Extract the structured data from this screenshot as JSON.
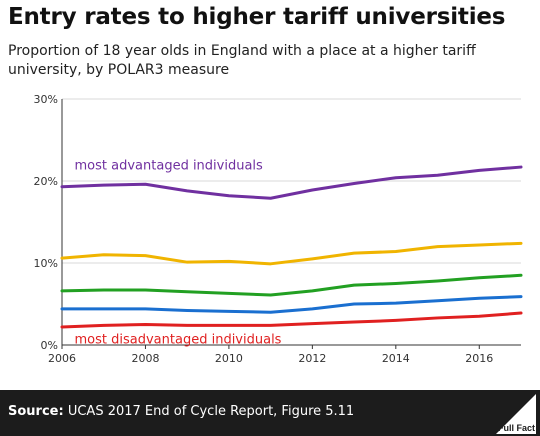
{
  "title": "Entry rates to higher tariff universities",
  "subtitle": "Proportion of 18 year olds in England with a place at a higher tariff university, by POLAR3 measure",
  "footer": {
    "source_label": "Source:",
    "source_text": "UCAS 2017 End of Cycle Report, Figure 5.11",
    "logo_text": "Full Fact"
  },
  "chart_data": {
    "type": "line",
    "x": [
      2006,
      2007,
      2008,
      2009,
      2010,
      2011,
      2012,
      2013,
      2014,
      2015,
      2016,
      2017
    ],
    "xlim": [
      2006,
      2017
    ],
    "ylim": [
      0,
      30
    ],
    "ytick_values": [
      0,
      10,
      20,
      30
    ],
    "ytick_labels": [
      "0%",
      "10%",
      "20%",
      "30%"
    ],
    "xtick_values": [
      2006,
      2008,
      2010,
      2012,
      2014,
      2016
    ],
    "xtick_labels": [
      "2006",
      "2008",
      "2010",
      "2012",
      "2014",
      "2016"
    ],
    "grid": "horizontal",
    "series": [
      {
        "color": "#7030a0",
        "values": [
          19.3,
          19.5,
          19.6,
          18.8,
          18.2,
          17.9,
          18.9,
          19.7,
          20.4,
          20.7,
          21.3,
          21.7
        ]
      },
      {
        "color": "#f0b400",
        "values": [
          10.6,
          11.0,
          10.9,
          10.1,
          10.2,
          9.9,
          10.5,
          11.2,
          11.4,
          12.0,
          12.2,
          12.4
        ]
      },
      {
        "color": "#22a022",
        "values": [
          6.6,
          6.7,
          6.7,
          6.5,
          6.3,
          6.1,
          6.6,
          7.3,
          7.5,
          7.8,
          8.2,
          8.5
        ]
      },
      {
        "color": "#1a6fd0",
        "values": [
          4.4,
          4.4,
          4.4,
          4.2,
          4.1,
          4.0,
          4.4,
          5.0,
          5.1,
          5.4,
          5.7,
          5.9
        ]
      },
      {
        "color": "#e02020",
        "values": [
          2.2,
          2.4,
          2.5,
          2.4,
          2.4,
          2.4,
          2.6,
          2.8,
          3.0,
          3.3,
          3.5,
          3.9
        ]
      }
    ],
    "annotations": [
      {
        "text": "most advantaged individuals",
        "color": "#7030a0"
      },
      {
        "text": "most disadvantaged individuals",
        "color": "#e02020"
      }
    ]
  }
}
